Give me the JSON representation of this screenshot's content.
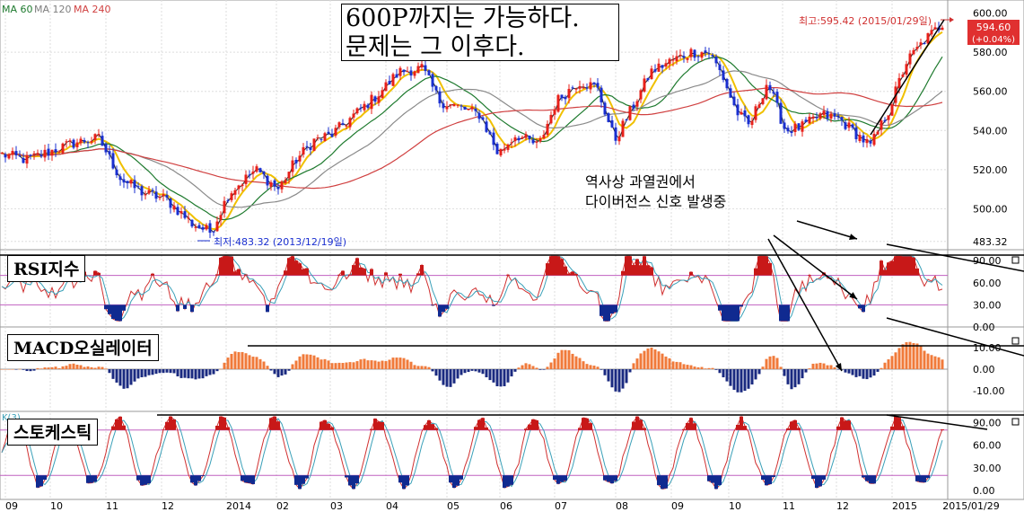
{
  "headline": {
    "line1": "600P까지는 가능하다.",
    "line2": "문제는 그 이후다."
  },
  "ma_legend": [
    {
      "label": "MA 60",
      "color": "#1e7a2e"
    },
    {
      "label": "MA 120",
      "color": "#7f7f7f"
    },
    {
      "label": "MA 240",
      "color": "#d04040"
    }
  ],
  "annotation": {
    "line1": "역사상 과열권에서",
    "line2": "다이버전스 신호 발생중"
  },
  "panels": {
    "rsi": {
      "label": "RSI지수",
      "ticks": [
        "90.00",
        "60.00",
        "30.00",
        "0.00"
      ]
    },
    "macd": {
      "label": "MACD오실레이터",
      "ticks": [
        "10.00",
        "0.00",
        "-10.00"
      ]
    },
    "stoch": {
      "label": "스토케스틱",
      "legend": "K(3)",
      "ticks": [
        "90.00",
        "60.00",
        "30.00",
        "0.00"
      ]
    }
  },
  "colors": {
    "up": "#e8201a",
    "down": "#1a2fd0",
    "ma5": "#222222",
    "ma20": "#f0c000",
    "ma60": "#1e7a2e",
    "ma120": "#8a8a8a",
    "ma240": "#d04040",
    "osc_pos": "#f07a3a",
    "osc_neg": "#1a2a80",
    "over": "#c81818",
    "under": "#102a90",
    "line_a": "#d03030",
    "line_b": "#3aa0b8",
    "price_box": "#e03030"
  },
  "chart_data": {
    "type": "candlestick",
    "y_ticks": [
      "600.00",
      "580.00",
      "560.00",
      "540.00",
      "520.00",
      "500.00",
      "483.32"
    ],
    "x_ticks": [
      "09",
      "10",
      "11",
      "12",
      "2014",
      "02",
      "03",
      "04",
      "05",
      "06",
      "07",
      "08",
      "09",
      "10",
      "11",
      "12",
      "2015",
      "2015/01/29"
    ],
    "high_label": "최고:595.42 (2015/01/29일)",
    "low_label": "최저:483.32 (2013/12/19일)",
    "last_price": "594.60",
    "last_change": "(+0.04%)",
    "close_path": [
      [
        0,
        528
      ],
      [
        30,
        525
      ],
      [
        60,
        530
      ],
      [
        85,
        534
      ],
      [
        110,
        536
      ],
      [
        135,
        515
      ],
      [
        160,
        508
      ],
      [
        185,
        505
      ],
      [
        215,
        492
      ],
      [
        235,
        488
      ],
      [
        255,
        508
      ],
      [
        285,
        520
      ],
      [
        310,
        510
      ],
      [
        330,
        525
      ],
      [
        350,
        535
      ],
      [
        370,
        538
      ],
      [
        395,
        548
      ],
      [
        420,
        558
      ],
      [
        445,
        570
      ],
      [
        470,
        572
      ],
      [
        490,
        555
      ],
      [
        510,
        552
      ],
      [
        535,
        548
      ],
      [
        555,
        528
      ],
      [
        575,
        538
      ],
      [
        600,
        532
      ],
      [
        620,
        555
      ],
      [
        645,
        565
      ],
      [
        665,
        562
      ],
      [
        685,
        535
      ],
      [
        705,
        552
      ],
      [
        725,
        570
      ],
      [
        745,
        575
      ],
      [
        770,
        580
      ],
      [
        790,
        580
      ],
      [
        805,
        568
      ],
      [
        820,
        550
      ],
      [
        835,
        542
      ],
      [
        855,
        565
      ],
      [
        875,
        540
      ],
      [
        895,
        542
      ],
      [
        915,
        548
      ],
      [
        935,
        546
      ],
      [
        955,
        538
      ],
      [
        970,
        532
      ],
      [
        990,
        550
      ],
      [
        1010,
        575
      ],
      [
        1030,
        586
      ],
      [
        1050,
        594.6
      ]
    ],
    "ylim": [
      480,
      603
    ]
  }
}
